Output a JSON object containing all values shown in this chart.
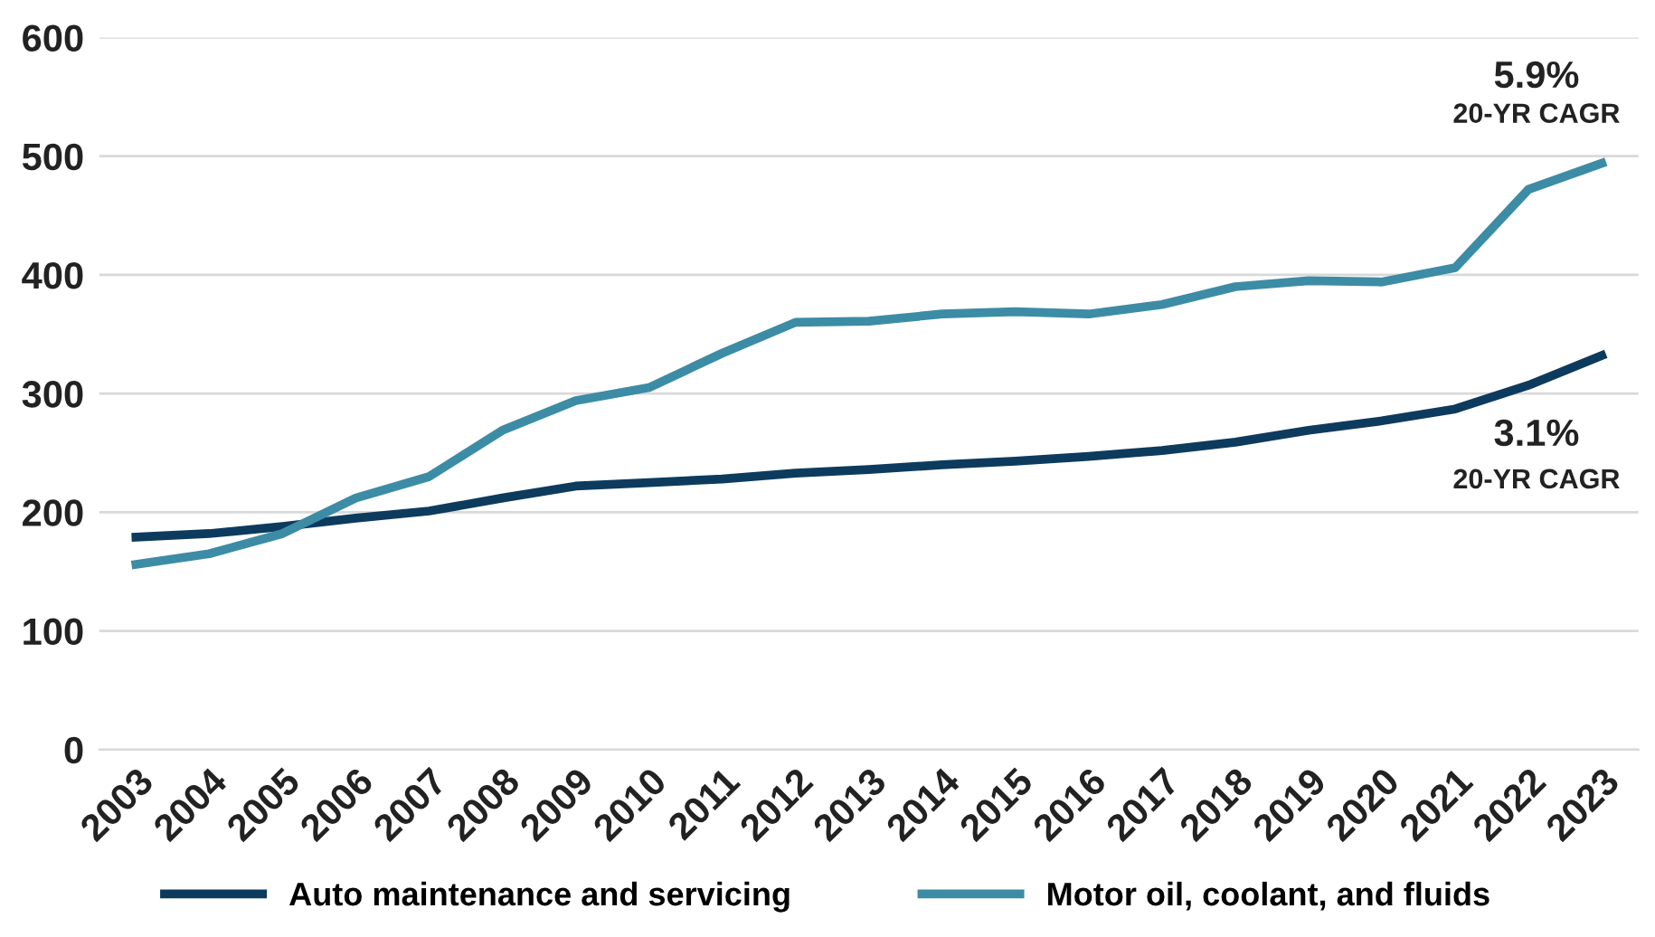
{
  "chart_data": {
    "type": "line",
    "categories": [
      "2003",
      "2004",
      "2005",
      "2006",
      "2007",
      "2008",
      "2009",
      "2010",
      "2011",
      "2012",
      "2013",
      "2014",
      "2015",
      "2016",
      "2017",
      "2018",
      "2019",
      "2020",
      "2021",
      "2022",
      "2023"
    ],
    "series": [
      {
        "name": "Auto maintenance and servicing",
        "color": "#0d3b5e",
        "values": [
          179,
          182,
          188,
          195,
          201,
          212,
          222,
          225,
          228,
          233,
          236,
          240,
          243,
          247,
          252,
          259,
          269,
          277,
          287,
          307,
          332
        ]
      },
      {
        "name": "Motor oil, coolant, and fluids",
        "color": "#3d8ca5",
        "values": [
          156,
          165,
          182,
          212,
          230,
          269,
          294,
          305,
          334,
          360,
          361,
          367,
          369,
          367,
          375,
          390,
          395,
          394,
          406,
          472,
          494
        ]
      }
    ],
    "ylim": [
      0,
      600
    ],
    "yticks": [
      0,
      100,
      200,
      300,
      400,
      500,
      600
    ],
    "grid": "y",
    "legend": "bottom",
    "marker": "none",
    "line_style": "solid",
    "annotations": [
      "5.9%",
      "20-YR CAGR",
      "3.1%",
      "20-YR CAGR"
    ]
  }
}
